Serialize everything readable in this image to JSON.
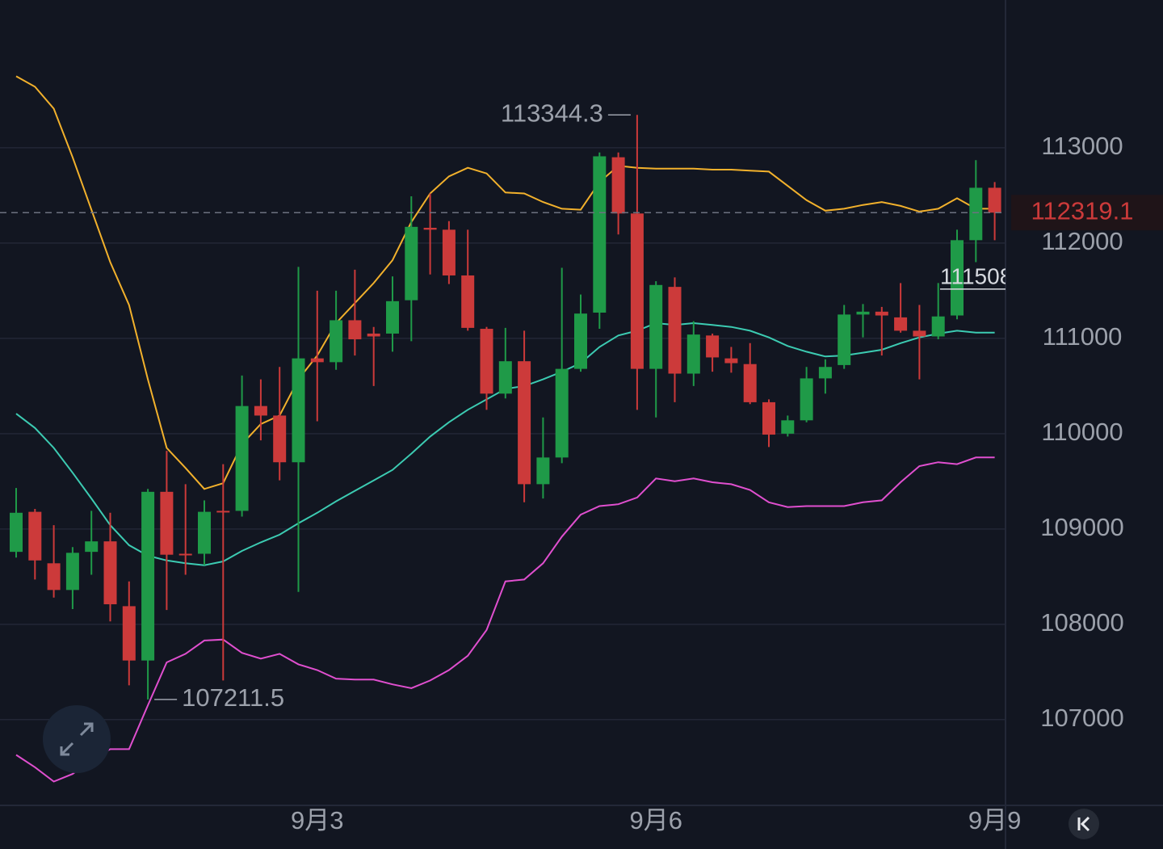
{
  "chart_data": {
    "type": "candlestick",
    "categories": [
      null,
      null,
      null,
      null,
      null,
      null,
      null,
      null,
      null,
      null,
      null,
      null,
      null,
      null,
      null,
      null,
      "9月3",
      null,
      null,
      null,
      null,
      null,
      null,
      null,
      null,
      null,
      null,
      null,
      null,
      null,
      null,
      null,
      null,
      null,
      "9月6",
      null,
      null,
      null,
      null,
      null,
      null,
      null,
      null,
      null,
      null,
      null,
      null,
      null,
      null,
      null,
      null,
      null,
      "9月9"
    ],
    "open": [
      108760,
      109180,
      108640,
      108360,
      108760,
      108870,
      108190,
      107620,
      109390,
      108740,
      108740,
      109190,
      109190,
      110290,
      110190,
      109700,
      110790,
      110750,
      111190,
      111050,
      111050,
      111400,
      112160,
      112140,
      111660,
      111100,
      110420,
      110760,
      109470,
      109750,
      110680,
      111270,
      112900,
      112310,
      110680,
      111540,
      110630,
      111030,
      110790,
      110730,
      110330,
      110000,
      110140,
      110580,
      110720,
      111250,
      111280,
      111220,
      111080,
      111020,
      111240,
      112030,
      112580
    ],
    "high": [
      109430,
      109210,
      109040,
      108810,
      109190,
      109170,
      108450,
      109420,
      109820,
      109470,
      109300,
      109680,
      110610,
      110570,
      110700,
      111750,
      111500,
      111500,
      111720,
      111120,
      111650,
      112490,
      112520,
      112230,
      112140,
      111120,
      111110,
      111080,
      110170,
      111740,
      111460,
      112950,
      112950,
      113344.3,
      111600,
      111640,
      111180,
      111050,
      110910,
      110950,
      110360,
      110190,
      110700,
      110780,
      111350,
      111360,
      111330,
      111580,
      111350,
      111580,
      112140,
      112870,
      112640
    ],
    "low": [
      108700,
      108470,
      108280,
      108160,
      108520,
      108030,
      107360,
      107211.5,
      108150,
      108520,
      108620,
      107410,
      109130,
      109930,
      109510,
      108340,
      110130,
      110670,
      110820,
      110500,
      110860,
      110970,
      111670,
      111570,
      111080,
      110250,
      110370,
      109280,
      109320,
      109690,
      110650,
      111100,
      112090,
      110250,
      110170,
      110330,
      110500,
      110650,
      110640,
      110310,
      109860,
      109970,
      110120,
      110420,
      110680,
      111010,
      110820,
      111060,
      110570,
      110990,
      111200,
      111800,
      112030
    ],
    "close": [
      109170,
      108670,
      108360,
      108750,
      108870,
      108210,
      107620,
      109390,
      108730,
      108730,
      109180,
      109180,
      110290,
      110190,
      109700,
      110790,
      110750,
      111190,
      110990,
      111020,
      111390,
      112170,
      112140,
      111660,
      111110,
      110420,
      110760,
      109470,
      109750,
      110680,
      111260,
      112910,
      112310,
      110680,
      111560,
      110630,
      111040,
      110800,
      110740,
      110330,
      109990,
      110140,
      110580,
      110700,
      111250,
      111280,
      111240,
      111080,
      111020,
      111230,
      112030,
      112580,
      112319.1
    ],
    "up_color": "#1f9a48",
    "down_color": "#cc3a3a",
    "overlays": [
      {
        "color": "#f2b12c",
        "values": [
          113750,
          113640,
          113410,
          112900,
          112350,
          111800,
          111350,
          110570,
          109850,
          109640,
          109420,
          109480,
          109890,
          110100,
          110190,
          110570,
          110820,
          111160,
          111370,
          111580,
          111820,
          112220,
          112520,
          112700,
          112790,
          112730,
          112530,
          112520,
          112430,
          112360,
          112350,
          112640,
          112810,
          112790,
          112780,
          112780,
          112780,
          112770,
          112770,
          112760,
          112750,
          112600,
          112450,
          112340,
          112360,
          112400,
          112430,
          112390,
          112330,
          112360,
          112470,
          112360,
          112360
        ]
      },
      {
        "color": "#3ccbb2",
        "values": [
          110210,
          110060,
          109850,
          109590,
          109320,
          109040,
          108830,
          108720,
          108670,
          108640,
          108620,
          108660,
          108770,
          108860,
          108940,
          109060,
          109170,
          109290,
          109400,
          109510,
          109620,
          109790,
          109970,
          110120,
          110250,
          110360,
          110470,
          110500,
          110570,
          110650,
          110740,
          110910,
          111030,
          111080,
          111160,
          111140,
          111160,
          111140,
          111120,
          111080,
          111010,
          110920,
          110860,
          110810,
          110820,
          110850,
          110880,
          110950,
          111010,
          111050,
          111080,
          111060,
          111060
        ]
      },
      {
        "color": "#e04fcf",
        "values": [
          106630,
          106500,
          106350,
          106430,
          106580,
          106690,
          106690,
          107150,
          107600,
          107690,
          107830,
          107840,
          107700,
          107640,
          107690,
          107580,
          107520,
          107430,
          107420,
          107420,
          107370,
          107330,
          107410,
          107520,
          107670,
          107940,
          108450,
          108470,
          108640,
          108920,
          109150,
          109240,
          109260,
          109330,
          109530,
          109500,
          109530,
          109490,
          109470,
          109410,
          109280,
          109230,
          109240,
          109240,
          109240,
          109280,
          109300,
          109490,
          109660,
          109700,
          109680,
          109750,
          109750
        ]
      }
    ],
    "marker_price": 111508,
    "ylim": [
      106100,
      114550
    ],
    "yticks": [
      107000,
      108000,
      109000,
      110000,
      111000,
      112000,
      113000
    ],
    "grid": true
  }
}
